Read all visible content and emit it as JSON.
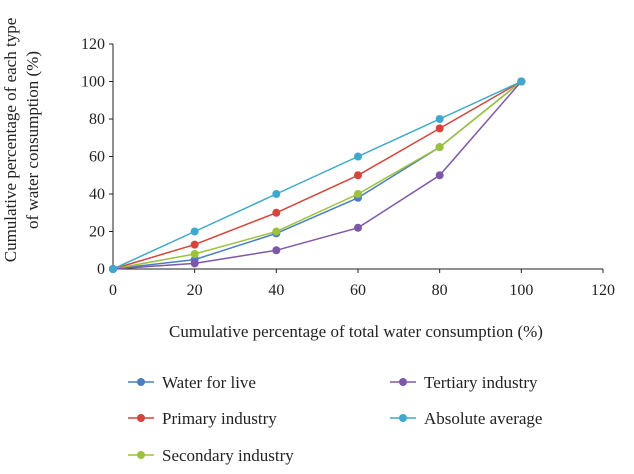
{
  "chart_data": {
    "type": "line",
    "xlabel": "Cumulative percentage of total water consumption (%)",
    "ylabel_lines": [
      "Cumulative percentage of each type",
      "of water consumption (%)"
    ],
    "xlim": [
      0,
      120
    ],
    "ylim": [
      0,
      120
    ],
    "x_ticks": [
      0,
      20,
      40,
      60,
      80,
      100,
      120
    ],
    "y_ticks": [
      0,
      20,
      40,
      60,
      80,
      100,
      120
    ],
    "grid": false,
    "legend_position": "bottom",
    "series": [
      {
        "name": "Water for live",
        "color": "#4a7ec2",
        "x": [
          0,
          20,
          40,
          60,
          80,
          100
        ],
        "y": [
          0,
          5,
          19,
          38,
          65,
          100
        ]
      },
      {
        "name": "Primary industry",
        "color": "#d6443b",
        "x": [
          0,
          20,
          40,
          60,
          80,
          100
        ],
        "y": [
          0,
          13,
          30,
          50,
          75,
          100
        ]
      },
      {
        "name": "Secondary industry",
        "color": "#9cc23c",
        "x": [
          0,
          20,
          40,
          60,
          80,
          100
        ],
        "y": [
          0,
          8,
          20,
          40,
          65,
          100
        ]
      },
      {
        "name": "Tertiary industry",
        "color": "#7e58a8",
        "x": [
          0,
          20,
          40,
          60,
          80,
          100
        ],
        "y": [
          0,
          3,
          10,
          22,
          50,
          100
        ]
      },
      {
        "name": "Absolute average",
        "color": "#3ea9cc",
        "x": [
          0,
          20,
          40,
          60,
          80,
          100
        ],
        "y": [
          0,
          20,
          40,
          60,
          80,
          100
        ]
      }
    ]
  }
}
